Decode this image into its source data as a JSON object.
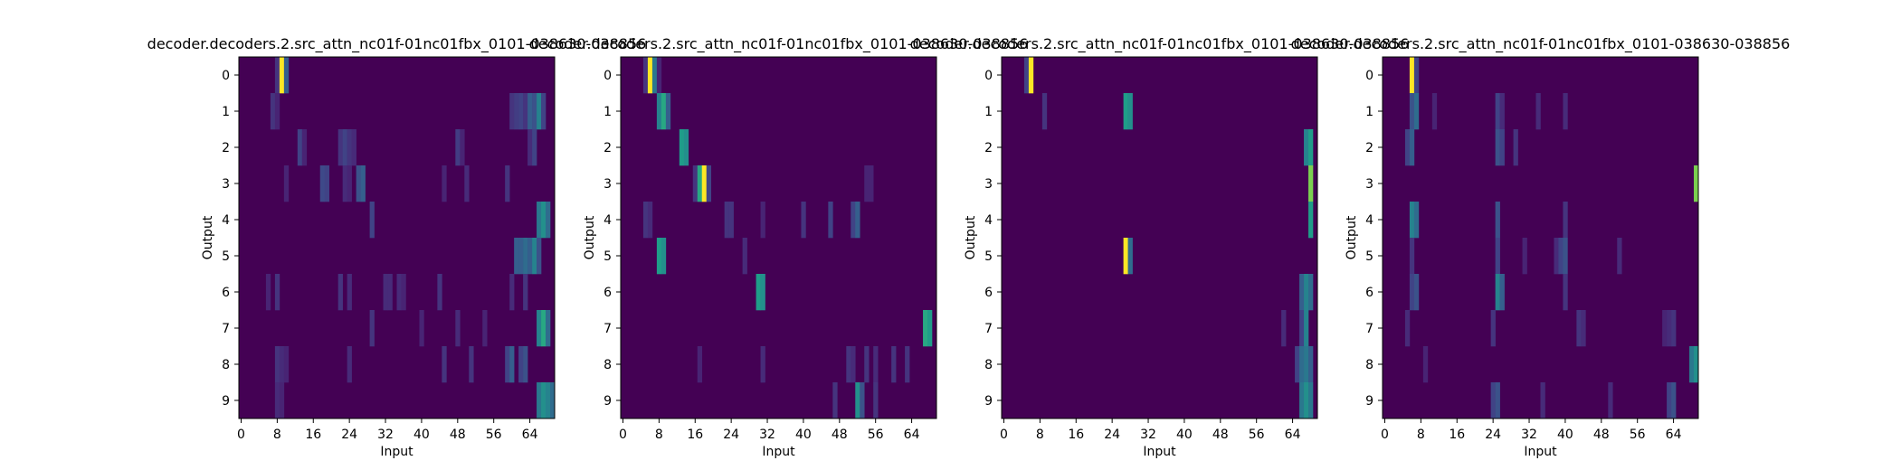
{
  "chart_data": [
    {
      "type": "heatmap",
      "title": "decoder.decoders.2.src_attn_nc01f-01nc01fbx_0101-038630-038856",
      "xlabel": "Input",
      "ylabel": "Output",
      "n_inputs": 70,
      "rows": [
        "0",
        "1",
        "2",
        "3",
        "4",
        "5",
        "6",
        "7",
        "8",
        "9"
      ],
      "xticks": [
        "0",
        "8",
        "16",
        "24",
        "32",
        "40",
        "48",
        "56",
        "64"
      ],
      "colormap": "viridis",
      "cells": [
        [
          [
            8,
            0.15
          ],
          [
            9,
            1.0
          ],
          [
            10,
            0.3
          ]
        ],
        [
          [
            7,
            0.15
          ],
          [
            8,
            0.1
          ],
          [
            60,
            0.15
          ],
          [
            61,
            0.18
          ],
          [
            62,
            0.2
          ],
          [
            63,
            0.15
          ],
          [
            64,
            0.3
          ],
          [
            65,
            0.25
          ],
          [
            66,
            0.45
          ],
          [
            67,
            0.2
          ]
        ],
        [
          [
            13,
            0.2
          ],
          [
            14,
            0.1
          ],
          [
            22,
            0.15
          ],
          [
            23,
            0.2
          ],
          [
            24,
            0.15
          ],
          [
            25,
            0.12
          ],
          [
            48,
            0.18
          ],
          [
            49,
            0.1
          ],
          [
            64,
            0.12
          ],
          [
            65,
            0.2
          ]
        ],
        [
          [
            10,
            0.1
          ],
          [
            18,
            0.22
          ],
          [
            19,
            0.2
          ],
          [
            23,
            0.12
          ],
          [
            24,
            0.1
          ],
          [
            26,
            0.25
          ],
          [
            27,
            0.3
          ],
          [
            45,
            0.1
          ],
          [
            50,
            0.12
          ],
          [
            59,
            0.15
          ]
        ],
        [
          [
            29,
            0.2
          ],
          [
            66,
            0.4
          ],
          [
            67,
            0.5
          ],
          [
            68,
            0.35
          ]
        ],
        [
          [
            61,
            0.3
          ],
          [
            62,
            0.3
          ],
          [
            63,
            0.35
          ],
          [
            64,
            0.3
          ],
          [
            65,
            0.45
          ],
          [
            66,
            0.25
          ]
        ],
        [
          [
            6,
            0.1
          ],
          [
            8,
            0.15
          ],
          [
            22,
            0.15
          ],
          [
            24,
            0.12
          ],
          [
            32,
            0.12
          ],
          [
            33,
            0.12
          ],
          [
            35,
            0.12
          ],
          [
            36,
            0.1
          ],
          [
            44,
            0.15
          ],
          [
            60,
            0.12
          ],
          [
            63,
            0.15
          ]
        ],
        [
          [
            29,
            0.15
          ],
          [
            40,
            0.1
          ],
          [
            48,
            0.12
          ],
          [
            54,
            0.1
          ],
          [
            66,
            0.45
          ],
          [
            67,
            0.6
          ],
          [
            68,
            0.35
          ]
        ],
        [
          [
            8,
            0.15
          ],
          [
            9,
            0.12
          ],
          [
            10,
            0.1
          ],
          [
            24,
            0.12
          ],
          [
            45,
            0.15
          ],
          [
            51,
            0.15
          ],
          [
            59,
            0.2
          ],
          [
            60,
            0.3
          ],
          [
            62,
            0.2
          ],
          [
            63,
            0.25
          ]
        ],
        [
          [
            8,
            0.12
          ],
          [
            9,
            0.1
          ],
          [
            66,
            0.4
          ],
          [
            67,
            0.5
          ],
          [
            68,
            0.45
          ],
          [
            69,
            0.35
          ]
        ]
      ]
    },
    {
      "type": "heatmap",
      "title": "decoder.decoders.2.src_attn_nc01f-01nc01fbx_0101-038630-038856",
      "xlabel": "Input",
      "ylabel": "Output",
      "n_inputs": 70,
      "rows": [
        "0",
        "1",
        "2",
        "3",
        "4",
        "5",
        "6",
        "7",
        "8",
        "9"
      ],
      "xticks": [
        "0",
        "8",
        "16",
        "24",
        "32",
        "40",
        "48",
        "56",
        "64"
      ],
      "colormap": "viridis",
      "cells": [
        [
          [
            5,
            0.15
          ],
          [
            6,
            1.0
          ],
          [
            7,
            0.4
          ],
          [
            8,
            0.1
          ]
        ],
        [
          [
            8,
            0.45
          ],
          [
            9,
            0.6
          ],
          [
            10,
            0.3
          ]
        ],
        [
          [
            13,
            0.55
          ],
          [
            14,
            0.5
          ]
        ],
        [
          [
            16,
            0.15
          ],
          [
            17,
            0.6
          ],
          [
            18,
            1.0
          ],
          [
            19,
            0.2
          ],
          [
            54,
            0.1
          ],
          [
            55,
            0.1
          ]
        ],
        [
          [
            5,
            0.15
          ],
          [
            6,
            0.12
          ],
          [
            23,
            0.15
          ],
          [
            24,
            0.15
          ],
          [
            31,
            0.1
          ],
          [
            40,
            0.15
          ],
          [
            46,
            0.2
          ],
          [
            51,
            0.2
          ],
          [
            52,
            0.3
          ]
        ],
        [
          [
            8,
            0.55
          ],
          [
            9,
            0.5
          ],
          [
            27,
            0.12
          ]
        ],
        [
          [
            30,
            0.55
          ],
          [
            31,
            0.5
          ]
        ],
        [
          [
            67,
            0.6
          ],
          [
            68,
            0.55
          ]
        ],
        [
          [
            17,
            0.1
          ],
          [
            31,
            0.12
          ],
          [
            50,
            0.15
          ],
          [
            51,
            0.12
          ],
          [
            54,
            0.15
          ],
          [
            56,
            0.12
          ],
          [
            60,
            0.15
          ],
          [
            63,
            0.15
          ]
        ],
        [
          [
            47,
            0.15
          ],
          [
            52,
            0.5
          ],
          [
            53,
            0.25
          ],
          [
            56,
            0.15
          ]
        ]
      ]
    },
    {
      "type": "heatmap",
      "title": "decoder.decoders.2.src_attn_nc01f-01nc01fbx_0101-038630-038856",
      "xlabel": "Input",
      "ylabel": "Output",
      "n_inputs": 70,
      "rows": [
        "0",
        "1",
        "2",
        "3",
        "4",
        "5",
        "6",
        "7",
        "8",
        "9"
      ],
      "xticks": [
        "0",
        "8",
        "16",
        "24",
        "32",
        "40",
        "48",
        "56",
        "64"
      ],
      "colormap": "viridis",
      "cells": [
        [
          [
            5,
            0.2
          ],
          [
            6,
            1.0
          ]
        ],
        [
          [
            9,
            0.15
          ],
          [
            27,
            0.55
          ],
          [
            28,
            0.5
          ]
        ],
        [
          [
            67,
            0.45
          ],
          [
            68,
            0.55
          ]
        ],
        [
          [
            68,
            0.8
          ]
        ],
        [
          [
            68,
            0.55
          ]
        ],
        [
          [
            27,
            1.0
          ],
          [
            28,
            0.35
          ]
        ],
        [
          [
            66,
            0.3
          ],
          [
            67,
            0.45
          ],
          [
            68,
            0.35
          ]
        ],
        [
          [
            62,
            0.12
          ],
          [
            66,
            0.2
          ],
          [
            67,
            0.45
          ]
        ],
        [
          [
            65,
            0.2
          ],
          [
            66,
            0.35
          ],
          [
            67,
            0.4
          ],
          [
            68,
            0.3
          ]
        ],
        [
          [
            66,
            0.4
          ],
          [
            67,
            0.5
          ],
          [
            68,
            0.4
          ]
        ]
      ]
    },
    {
      "type": "heatmap",
      "title": "decoder.decoders.2.src_attn_nc01f-01nc01fbx_0101-038630-038856",
      "xlabel": "Input",
      "ylabel": "Output",
      "n_inputs": 70,
      "rows": [
        "0",
        "1",
        "2",
        "3",
        "4",
        "5",
        "6",
        "7",
        "8",
        "9"
      ],
      "xticks": [
        "0",
        "8",
        "16",
        "24",
        "32",
        "40",
        "48",
        "56",
        "64"
      ],
      "colormap": "viridis",
      "cells": [
        [
          [
            6,
            1.0
          ],
          [
            7,
            0.2
          ]
        ],
        [
          [
            6,
            0.25
          ],
          [
            7,
            0.35
          ],
          [
            11,
            0.1
          ],
          [
            25,
            0.2
          ],
          [
            26,
            0.12
          ],
          [
            34,
            0.12
          ],
          [
            40,
            0.12
          ]
        ],
        [
          [
            5,
            0.2
          ],
          [
            6,
            0.3
          ],
          [
            25,
            0.25
          ],
          [
            26,
            0.2
          ],
          [
            29,
            0.15
          ]
        ],
        [
          [
            69,
            0.8
          ]
        ],
        [
          [
            6,
            0.45
          ],
          [
            7,
            0.35
          ],
          [
            25,
            0.25
          ],
          [
            40,
            0.15
          ]
        ],
        [
          [
            6,
            0.15
          ],
          [
            25,
            0.2
          ],
          [
            31,
            0.1
          ],
          [
            38,
            0.12
          ],
          [
            39,
            0.2
          ],
          [
            40,
            0.25
          ],
          [
            52,
            0.12
          ]
        ],
        [
          [
            6,
            0.2
          ],
          [
            7,
            0.25
          ],
          [
            25,
            0.45
          ],
          [
            26,
            0.3
          ],
          [
            40,
            0.15
          ]
        ],
        [
          [
            5,
            0.12
          ],
          [
            24,
            0.15
          ],
          [
            43,
            0.15
          ],
          [
            44,
            0.12
          ],
          [
            62,
            0.1
          ],
          [
            63,
            0.12
          ],
          [
            64,
            0.15
          ]
        ],
        [
          [
            9,
            0.1
          ],
          [
            68,
            0.4
          ],
          [
            69,
            0.5
          ]
        ],
        [
          [
            24,
            0.2
          ],
          [
            25,
            0.25
          ],
          [
            35,
            0.12
          ],
          [
            50,
            0.12
          ],
          [
            63,
            0.2
          ],
          [
            64,
            0.25
          ]
        ]
      ]
    }
  ]
}
